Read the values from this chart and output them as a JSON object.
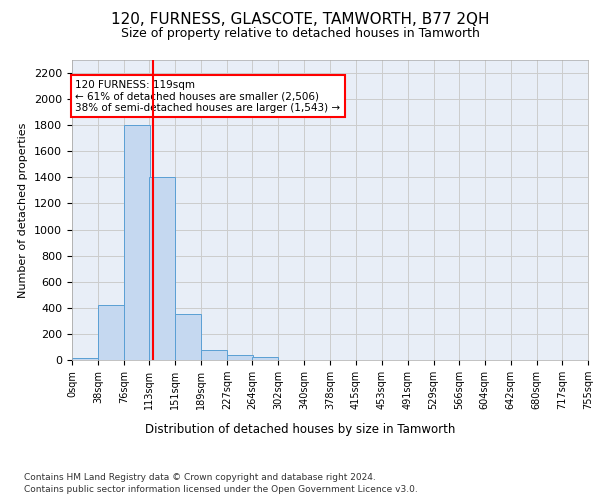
{
  "title": "120, FURNESS, GLASCOTE, TAMWORTH, B77 2QH",
  "subtitle": "Size of property relative to detached houses in Tamworth",
  "xlabel": "Distribution of detached houses by size in Tamworth",
  "ylabel": "Number of detached properties",
  "bar_color": "#c5d8f0",
  "bar_edge_color": "#5a9fd4",
  "vline_color": "red",
  "vline_x": 119,
  "annotation_text": "120 FURNESS: 119sqm\n← 61% of detached houses are smaller (2,506)\n38% of semi-detached houses are larger (1,543) →",
  "annotation_box_color": "white",
  "annotation_box_edge": "red",
  "bin_edges": [
    0,
    38,
    76,
    113,
    151,
    189,
    227,
    264,
    302,
    340,
    378,
    415,
    453,
    491,
    529,
    566,
    604,
    642,
    680,
    717,
    755
  ],
  "bin_counts": [
    15,
    420,
    1800,
    1400,
    350,
    80,
    35,
    20,
    0,
    0,
    0,
    0,
    0,
    0,
    0,
    0,
    0,
    0,
    0,
    0
  ],
  "ylim": [
    0,
    2300
  ],
  "xlim": [
    0,
    755
  ],
  "yticks": [
    0,
    200,
    400,
    600,
    800,
    1000,
    1200,
    1400,
    1600,
    1800,
    2000,
    2200
  ],
  "grid_color": "#cccccc",
  "bg_color": "#e8eef7",
  "footer_line1": "Contains HM Land Registry data © Crown copyright and database right 2024.",
  "footer_line2": "Contains public sector information licensed under the Open Government Licence v3.0."
}
